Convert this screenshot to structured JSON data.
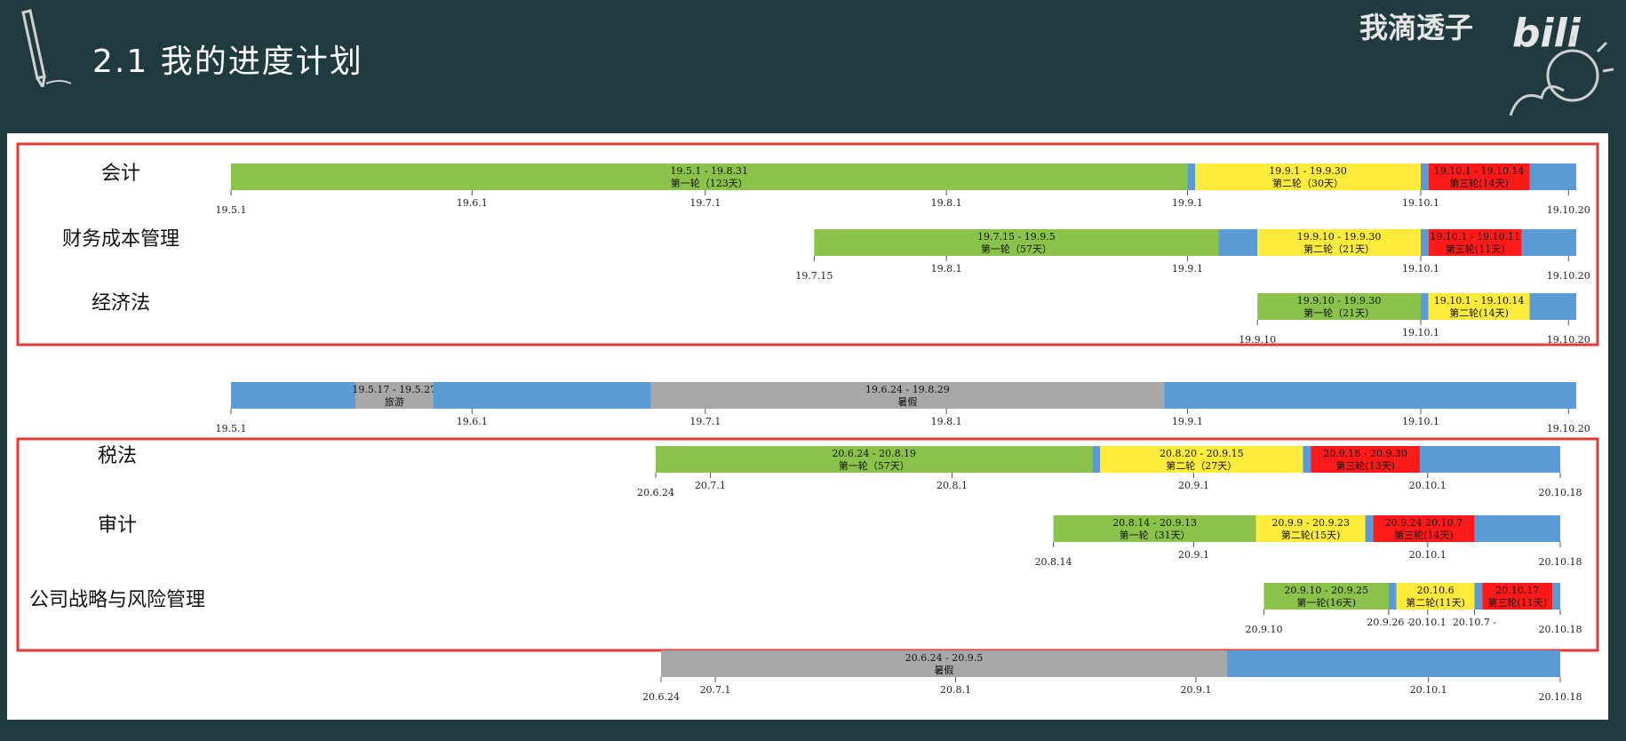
{
  "header": {
    "title": "2.1  我的进度计划",
    "watermark": "我滴透子",
    "brand": "bilibili"
  },
  "colors": {
    "green": "#8bc34a",
    "yellow": "#ffeb3b",
    "red": "#ff1a1a",
    "blue": "#5b9bd5",
    "gray": "#a8a8a8",
    "frame": "#e53935",
    "background": "#1f3b40"
  },
  "chart_data": {
    "type": "gantt",
    "groups": [
      {
        "rows": [
          {
            "label": "会计",
            "axis": {
              "start": "19.5.1",
              "end": "19.10.20",
              "ticks": [
                "19.5.1",
                "19.6.1",
                "19.7.1",
                "19.8.1",
                "19.9.1",
                "19.10.1",
                "19.10.20"
              ]
            },
            "segments": [
              {
                "color": "green",
                "from": 0,
                "to": 123,
                "l1": "19.5.1 - 19.8.31",
                "l2": "第一轮（123天）"
              },
              {
                "color": "blue",
                "from": 123,
                "to": 124
              },
              {
                "color": "yellow",
                "from": 124,
                "to": 153,
                "l1": "19.9.1 - 19.9.30",
                "l2": "第二轮（30天）"
              },
              {
                "color": "blue",
                "from": 153,
                "to": 154
              },
              {
                "color": "red",
                "from": 154,
                "to": 167,
                "l1": "19.10.1 - 19.10.14",
                "l2": "第三轮(14天)"
              },
              {
                "color": "blue",
                "from": 167,
                "to": 173
              }
            ]
          },
          {
            "label": "财务成本管理",
            "axis": {
              "start": "19.7.15",
              "end": "19.10.20",
              "ticks": [
                "19.7.15",
                "19.8.1",
                "19.9.1",
                "19.10.1",
                "19.10.20"
              ]
            },
            "segments": [
              {
                "color": "green",
                "from": 75,
                "to": 127,
                "l1": "19.7.15 - 19.9.5",
                "l2": "第一轮（57天）"
              },
              {
                "color": "blue",
                "from": 127,
                "to": 132
              },
              {
                "color": "yellow",
                "from": 132,
                "to": 153,
                "l1": "19.9.10 - 19.9.30",
                "l2": "第二轮（21天）"
              },
              {
                "color": "blue",
                "from": 153,
                "to": 154
              },
              {
                "color": "red",
                "from": 154,
                "to": 166,
                "l1": "19.10.1 - 19.10.11",
                "l2": "第三轮(11天)"
              },
              {
                "color": "blue",
                "from": 166,
                "to": 173
              }
            ]
          },
          {
            "label": "经济法",
            "axis": {
              "start": "19.9.10",
              "end": "19.10.20",
              "ticks": [
                "19.9.10",
                "19.10.1",
                "19.10.20"
              ]
            },
            "segments": [
              {
                "color": "green",
                "from": 132,
                "to": 153,
                "l1": "19.9.10 - 19.9.30",
                "l2": "第一轮（21天）"
              },
              {
                "color": "blue",
                "from": 153,
                "to": 154
              },
              {
                "color": "yellow",
                "from": 154,
                "to": 167,
                "l1": "19.10.1 - 19.10.14",
                "l2": "第二轮(14天)"
              },
              {
                "color": "blue",
                "from": 167,
                "to": 173
              }
            ]
          }
        ]
      },
      {
        "rows": [
          {
            "label": "",
            "axis": {
              "start": "19.5.1",
              "end": "19.10.20",
              "ticks": [
                "19.5.1",
                "19.6.1",
                "19.7.1",
                "19.8.1",
                "19.9.1",
                "19.10.1",
                "19.10.20"
              ]
            },
            "segments": [
              {
                "color": "blue",
                "from": 0,
                "to": 16
              },
              {
                "color": "gray",
                "from": 16,
                "to": 26,
                "l1": "19.5.17 - 19.5.27",
                "l2": "旅游"
              },
              {
                "color": "blue",
                "from": 26,
                "to": 54
              },
              {
                "color": "gray",
                "from": 54,
                "to": 120,
                "l1": "19.6.24 - 19.8.29",
                "l2": "暑假"
              },
              {
                "color": "blue",
                "from": 120,
                "to": 173
              }
            ]
          }
        ]
      },
      {
        "rows": [
          {
            "label": "税法",
            "axis": {
              "start": "20.6.24",
              "end": "20.10.18",
              "ticks": [
                "20.6.24",
                "20.7.1",
                "20.8.1",
                "20.9.1",
                "20.10.1",
                "20.10.18"
              ]
            },
            "segments": [
              {
                "color": "green",
                "from": 0,
                "to": 56,
                "l1": "20.6.24 - 20.8.19",
                "l2": "第一轮（57天）"
              },
              {
                "color": "blue",
                "from": 56,
                "to": 57
              },
              {
                "color": "yellow",
                "from": 57,
                "to": 83,
                "l1": "20.8.20 - 20.9.15",
                "l2": "第二轮（27天）"
              },
              {
                "color": "blue",
                "from": 83,
                "to": 84
              },
              {
                "color": "red",
                "from": 84,
                "to": 98,
                "l1": "20.9.18 - 20.9.30",
                "l2": "第三轮(13天)"
              },
              {
                "color": "blue",
                "from": 98,
                "to": 116
              }
            ]
          },
          {
            "label": "审计",
            "axis": {
              "start": "20.8.14",
              "end": "20.10.18",
              "ticks": [
                "20.8.14",
                "20.9.1",
                "20.10.1",
                "20.10.18"
              ]
            },
            "segments": [
              {
                "color": "green",
                "from": 51,
                "to": 77,
                "l1": "20.8.14 - 20.9.13",
                "l2": "第一轮（31天）"
              },
              {
                "color": "yellow",
                "from": 77,
                "to": 91,
                "l1": "20.9.9 - 20.9.23",
                "l2": "第二轮(15天)"
              },
              {
                "color": "blue",
                "from": 91,
                "to": 92
              },
              {
                "color": "red",
                "from": 92,
                "to": 105,
                "l1": "20.9.24   20.10.7",
                "l2": "第三轮(14天)"
              },
              {
                "color": "blue",
                "from": 105,
                "to": 116
              }
            ]
          },
          {
            "label": "公司战略与风险管理",
            "axis": {
              "start": "20.9.10",
              "end": "20.10.18",
              "ticks": [
                "20.9.10",
                "20.9.26 -",
                "20.10.1",
                "20.10.7 -",
                "20.10.18"
              ]
            },
            "segments": [
              {
                "color": "green",
                "from": 78,
                "to": 94,
                "l1": "20.9.10 - 20.9.25",
                "l2": "第一轮(16天)"
              },
              {
                "color": "blue",
                "from": 94,
                "to": 95
              },
              {
                "color": "yellow",
                "from": 95,
                "to": 105,
                "l1": "20.10.6",
                "l2": "第二轮(11天)"
              },
              {
                "color": "blue",
                "from": 105,
                "to": 106
              },
              {
                "color": "red",
                "from": 106,
                "to": 115,
                "l1": "20.10.17",
                "l2": "第三轮(11天)"
              },
              {
                "color": "blue",
                "from": 115,
                "to": 116
              }
            ]
          }
        ]
      },
      {
        "rows": [
          {
            "label": "",
            "axis": {
              "start": "20.6.24",
              "end": "20.10.18",
              "ticks": [
                "20.6.24",
                "20.7.1",
                "20.8.1",
                "20.9.1",
                "20.10.1",
                "20.10.18"
              ]
            },
            "segments": [
              {
                "color": "gray",
                "from": 0,
                "to": 73,
                "l1": "20.6.24 - 20.9.5",
                "l2": "暑假"
              },
              {
                "color": "blue",
                "from": 73,
                "to": 116
              }
            ]
          }
        ]
      }
    ]
  }
}
